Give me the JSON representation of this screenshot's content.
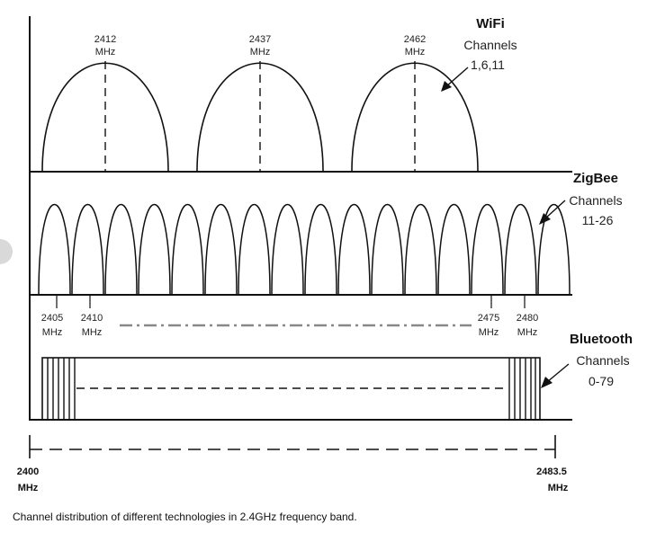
{
  "wifi": {
    "title": "WiFi",
    "subtitle_line1": "Channels",
    "subtitle_line2": "1,6,11",
    "center_labels": [
      {
        "freq": "2412",
        "unit": "MHz"
      },
      {
        "freq": "2437",
        "unit": "MHz"
      },
      {
        "freq": "2462",
        "unit": "MHz"
      }
    ]
  },
  "zigbee": {
    "title": "ZigBee",
    "subtitle_line1": "Channels",
    "subtitle_line2": "11-26",
    "channel_count": 16,
    "freq_labels": [
      {
        "freq": "2405",
        "unit": "MHz"
      },
      {
        "freq": "2410",
        "unit": "MHz"
      },
      {
        "freq": "2475",
        "unit": "MHz"
      },
      {
        "freq": "2480",
        "unit": "MHz"
      }
    ]
  },
  "bluetooth": {
    "title": "Bluetooth",
    "subtitle_line1": "Channels",
    "subtitle_line2": "0-79"
  },
  "axis": {
    "start_freq": "2400",
    "start_unit": "MHz",
    "end_freq": "2483.5",
    "end_unit": "MHz"
  },
  "caption": "Channel distribution of different technologies in 2.4GHz frequency band."
}
